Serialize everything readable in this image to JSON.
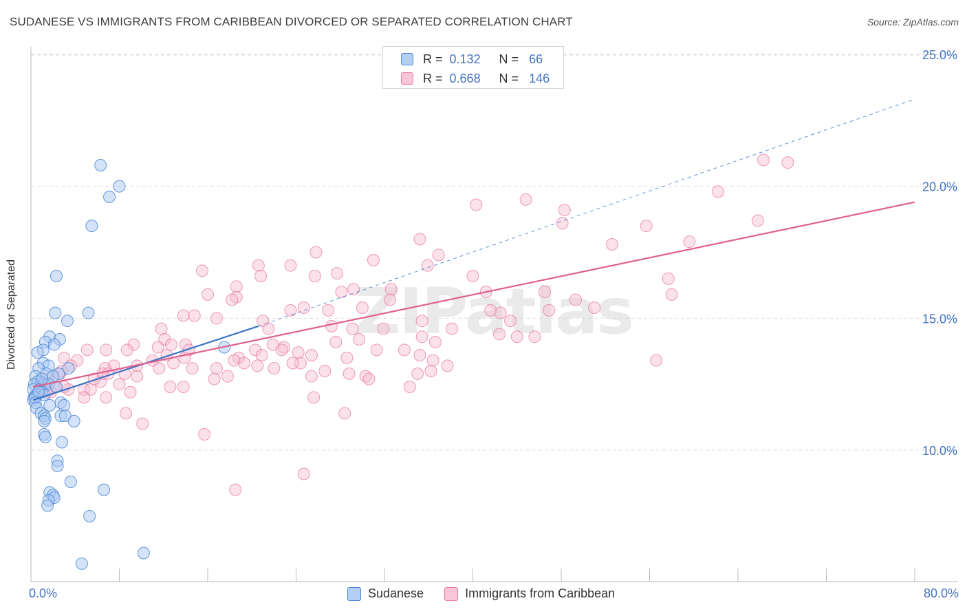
{
  "title": "SUDANESE VS IMMIGRANTS FROM CARIBBEAN DIVORCED OR SEPARATED CORRELATION CHART",
  "source": "Source: ZipAtlas.com",
  "watermark": "ZIPatlas",
  "legend": {
    "r_label": "R =",
    "n_label": "N =",
    "rows": [
      {
        "r": "0.132",
        "n": "66"
      },
      {
        "r": "0.668",
        "n": "146"
      }
    ]
  },
  "x_min_label": "0.0%",
  "x_max_label": "80.0%",
  "chart_data": {
    "type": "scatter",
    "title": "SUDANESE VS IMMIGRANTS FROM CARIBBEAN DIVORCED OR SEPARATED CORRELATION CHART",
    "xlabel": "",
    "ylabel": "Divorced or Separated",
    "xlim": [
      0,
      80
    ],
    "ylim": [
      5.5,
      25.5
    ],
    "y_ticks": [
      10,
      15,
      20,
      25
    ],
    "y_tick_labels": [
      "10.0%",
      "15.0%",
      "20.0%",
      "25.0%"
    ],
    "grid": true,
    "legend_position": "top-center",
    "colors": {
      "sudanese_fill": "#a9c8f2",
      "sudanese_edge": "#4a86d4",
      "sudanese_line": "#3a75c4",
      "caribbean_fill": "#f7bcd0",
      "caribbean_edge": "#e87aa0",
      "caribbean_line": "#e0608c"
    },
    "series": [
      {
        "name": "Sudanese",
        "r": 0.132,
        "n": 66,
        "trend": {
          "x0": 0.2,
          "y0": 11.9,
          "x1": 20.6,
          "y1": 14.7,
          "dash_to_x": 80,
          "dash_to_y": 23.3
        },
        "points": [
          [
            6.3,
            20.8
          ],
          [
            8.0,
            20.0
          ],
          [
            7.1,
            19.6
          ],
          [
            5.5,
            18.5
          ],
          [
            2.3,
            16.6
          ],
          [
            2.2,
            15.2
          ],
          [
            5.2,
            15.2
          ],
          [
            3.3,
            14.9
          ],
          [
            1.7,
            14.3
          ],
          [
            2.6,
            14.2
          ],
          [
            1.3,
            14.1
          ],
          [
            2.1,
            14.0
          ],
          [
            1.1,
            13.8
          ],
          [
            0.6,
            13.7
          ],
          [
            1.1,
            13.3
          ],
          [
            1.6,
            13.2
          ],
          [
            0.7,
            13.1
          ],
          [
            3.4,
            13.1
          ],
          [
            2.5,
            12.9
          ],
          [
            1.4,
            12.9
          ],
          [
            0.4,
            12.8
          ],
          [
            0.9,
            12.6
          ],
          [
            2.0,
            12.8
          ],
          [
            1.2,
            12.5
          ],
          [
            0.6,
            12.6
          ],
          [
            0.3,
            12.5
          ],
          [
            1.6,
            12.5
          ],
          [
            0.8,
            12.3
          ],
          [
            0.2,
            12.3
          ],
          [
            1.0,
            12.2
          ],
          [
            0.5,
            12.1
          ],
          [
            0.3,
            12.0
          ],
          [
            0.2,
            11.9
          ],
          [
            0.4,
            12.0
          ],
          [
            1.2,
            12.1
          ],
          [
            0.7,
            12.2
          ],
          [
            0.4,
            11.8
          ],
          [
            2.7,
            11.8
          ],
          [
            3.0,
            11.7
          ],
          [
            0.5,
            11.6
          ],
          [
            1.7,
            11.7
          ],
          [
            0.9,
            11.4
          ],
          [
            1.2,
            11.3
          ],
          [
            2.7,
            11.3
          ],
          [
            3.1,
            11.3
          ],
          [
            1.3,
            11.2
          ],
          [
            1.2,
            11.1
          ],
          [
            3.9,
            11.1
          ],
          [
            1.2,
            10.6
          ],
          [
            1.3,
            10.5
          ],
          [
            2.8,
            10.3
          ],
          [
            2.4,
            9.6
          ],
          [
            2.4,
            9.4
          ],
          [
            3.6,
            8.8
          ],
          [
            6.6,
            8.5
          ],
          [
            1.7,
            8.4
          ],
          [
            2.0,
            8.3
          ],
          [
            2.1,
            8.2
          ],
          [
            1.6,
            8.1
          ],
          [
            1.5,
            7.9
          ],
          [
            5.3,
            7.5
          ],
          [
            10.2,
            6.1
          ],
          [
            4.6,
            5.7
          ],
          [
            17.5,
            13.9
          ],
          [
            1.0,
            12.7
          ],
          [
            2.3,
            12.4
          ]
        ]
      },
      {
        "name": "Immigrants from Caribbean",
        "r": 0.668,
        "n": 146,
        "trend": {
          "x0": 0.2,
          "y0": 12.4,
          "x1": 80,
          "y1": 19.4
        },
        "points": [
          [
            66.3,
            21.0
          ],
          [
            68.5,
            20.9
          ],
          [
            62.2,
            19.8
          ],
          [
            40.3,
            19.3
          ],
          [
            44.8,
            19.5
          ],
          [
            48.3,
            19.1
          ],
          [
            65.8,
            18.7
          ],
          [
            48.1,
            18.6
          ],
          [
            55.7,
            18.5
          ],
          [
            35.2,
            18.0
          ],
          [
            52.6,
            17.8
          ],
          [
            59.6,
            17.9
          ],
          [
            25.8,
            17.5
          ],
          [
            36.9,
            17.4
          ],
          [
            31.0,
            17.2
          ],
          [
            20.6,
            17.0
          ],
          [
            23.5,
            17.0
          ],
          [
            35.9,
            17.0
          ],
          [
            15.5,
            16.8
          ],
          [
            27.7,
            16.7
          ],
          [
            20.8,
            16.6
          ],
          [
            25.7,
            16.6
          ],
          [
            40.0,
            16.6
          ],
          [
            57.7,
            16.5
          ],
          [
            18.6,
            16.2
          ],
          [
            29.2,
            16.1
          ],
          [
            32.6,
            16.1
          ],
          [
            28.1,
            16.0
          ],
          [
            41.2,
            16.0
          ],
          [
            46.5,
            16.0
          ],
          [
            16.0,
            15.9
          ],
          [
            18.6,
            15.8
          ],
          [
            58.0,
            15.9
          ],
          [
            18.2,
            15.7
          ],
          [
            32.5,
            15.7
          ],
          [
            49.3,
            15.7
          ],
          [
            51.0,
            15.4
          ],
          [
            24.7,
            15.4
          ],
          [
            30.0,
            15.4
          ],
          [
            23.5,
            15.3
          ],
          [
            26.9,
            15.3
          ],
          [
            41.6,
            15.3
          ],
          [
            42.5,
            15.2
          ],
          [
            13.8,
            15.1
          ],
          [
            14.8,
            15.1
          ],
          [
            16.8,
            15.0
          ],
          [
            46.9,
            15.3
          ],
          [
            21.0,
            14.9
          ],
          [
            35.4,
            14.9
          ],
          [
            43.4,
            14.9
          ],
          [
            21.5,
            14.6
          ],
          [
            11.8,
            14.6
          ],
          [
            27.2,
            14.7
          ],
          [
            31.9,
            14.6
          ],
          [
            38.1,
            14.6
          ],
          [
            29.1,
            14.6
          ],
          [
            42.4,
            14.4
          ],
          [
            35.4,
            14.3
          ],
          [
            44.0,
            14.3
          ],
          [
            12.1,
            14.2
          ],
          [
            29.7,
            14.2
          ],
          [
            12.7,
            14.0
          ],
          [
            21.9,
            14.0
          ],
          [
            27.6,
            14.1
          ],
          [
            36.6,
            14.1
          ],
          [
            9.3,
            14.0
          ],
          [
            11.5,
            13.9
          ],
          [
            14.0,
            14.0
          ],
          [
            22.9,
            13.9
          ],
          [
            33.8,
            13.8
          ],
          [
            6.8,
            13.8
          ],
          [
            8.7,
            13.8
          ],
          [
            5.1,
            13.8
          ],
          [
            14.3,
            13.8
          ],
          [
            20.3,
            13.8
          ],
          [
            22.7,
            13.8
          ],
          [
            24.2,
            13.7
          ],
          [
            31.3,
            13.8
          ],
          [
            12.3,
            13.6
          ],
          [
            13.9,
            13.5
          ],
          [
            18.8,
            13.5
          ],
          [
            20.9,
            13.6
          ],
          [
            25.4,
            13.6
          ],
          [
            28.6,
            13.5
          ],
          [
            35.2,
            13.6
          ],
          [
            24.4,
            13.3
          ],
          [
            11.0,
            13.4
          ],
          [
            12.9,
            13.3
          ],
          [
            18.4,
            13.4
          ],
          [
            3.0,
            13.5
          ],
          [
            36.4,
            13.4
          ],
          [
            56.6,
            13.4
          ],
          [
            4.2,
            13.4
          ],
          [
            9.6,
            13.2
          ],
          [
            19.3,
            13.3
          ],
          [
            23.7,
            13.3
          ],
          [
            3.6,
            13.2
          ],
          [
            7.5,
            13.2
          ],
          [
            14.6,
            13.1
          ],
          [
            16.8,
            13.1
          ],
          [
            20.5,
            13.2
          ],
          [
            37.7,
            13.2
          ],
          [
            6.7,
            13.1
          ],
          [
            11.6,
            13.1
          ],
          [
            22.0,
            13.1
          ],
          [
            26.6,
            13.0
          ],
          [
            28.8,
            12.9
          ],
          [
            30.3,
            12.8
          ],
          [
            36.2,
            13.0
          ],
          [
            8.5,
            12.9
          ],
          [
            9.6,
            12.8
          ],
          [
            6.3,
            12.6
          ],
          [
            2.8,
            13.0
          ],
          [
            16.6,
            12.7
          ],
          [
            35.0,
            12.9
          ],
          [
            6.5,
            12.9
          ],
          [
            1.5,
            12.7
          ],
          [
            2.2,
            12.4
          ],
          [
            7.0,
            12.9
          ],
          [
            25.4,
            12.8
          ],
          [
            30.6,
            12.7
          ],
          [
            5.7,
            12.7
          ],
          [
            2.6,
            12.9
          ],
          [
            3.4,
            12.3
          ],
          [
            1.8,
            12.2
          ],
          [
            0.9,
            12.4
          ],
          [
            1.4,
            12.2
          ],
          [
            3.0,
            12.4
          ],
          [
            4.8,
            12.3
          ],
          [
            8.0,
            12.5
          ],
          [
            12.6,
            12.4
          ],
          [
            9.0,
            12.2
          ],
          [
            5.4,
            12.3
          ],
          [
            34.3,
            12.4
          ],
          [
            6.8,
            12.0
          ],
          [
            13.8,
            12.4
          ],
          [
            17.8,
            12.8
          ],
          [
            4.8,
            12.0
          ],
          [
            25.6,
            12.0
          ],
          [
            8.6,
            11.4
          ],
          [
            28.4,
            11.4
          ],
          [
            10.1,
            11.0
          ],
          [
            15.7,
            10.6
          ],
          [
            24.7,
            9.1
          ],
          [
            18.5,
            8.5
          ],
          [
            45.6,
            14.3
          ]
        ]
      }
    ]
  }
}
